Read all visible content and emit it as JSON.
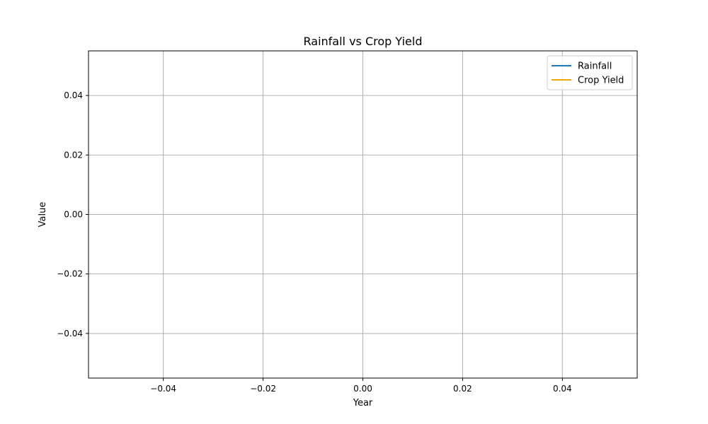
{
  "chart_data": {
    "type": "line",
    "title": "Rainfall vs Crop Yield",
    "xlabel": "Year",
    "ylabel": "Value",
    "xlim": [
      -0.055,
      0.055
    ],
    "ylim": [
      -0.055,
      0.055
    ],
    "x_ticks": [
      -0.04,
      -0.02,
      0.0,
      0.02,
      0.04
    ],
    "x_tick_labels": [
      "−0.04",
      "−0.02",
      "0.00",
      "0.02",
      "0.04"
    ],
    "y_ticks": [
      -0.04,
      -0.02,
      0.0,
      0.02,
      0.04
    ],
    "y_tick_labels": [
      "−0.04",
      "−0.02",
      "0.00",
      "0.02",
      "0.04"
    ],
    "grid": true,
    "legend_position": "top-right",
    "series": [
      {
        "name": "Rainfall",
        "color": "#1f77b4",
        "x": [],
        "y": []
      },
      {
        "name": "Crop Yield",
        "color": "#f0a500",
        "x": [],
        "y": []
      }
    ]
  }
}
